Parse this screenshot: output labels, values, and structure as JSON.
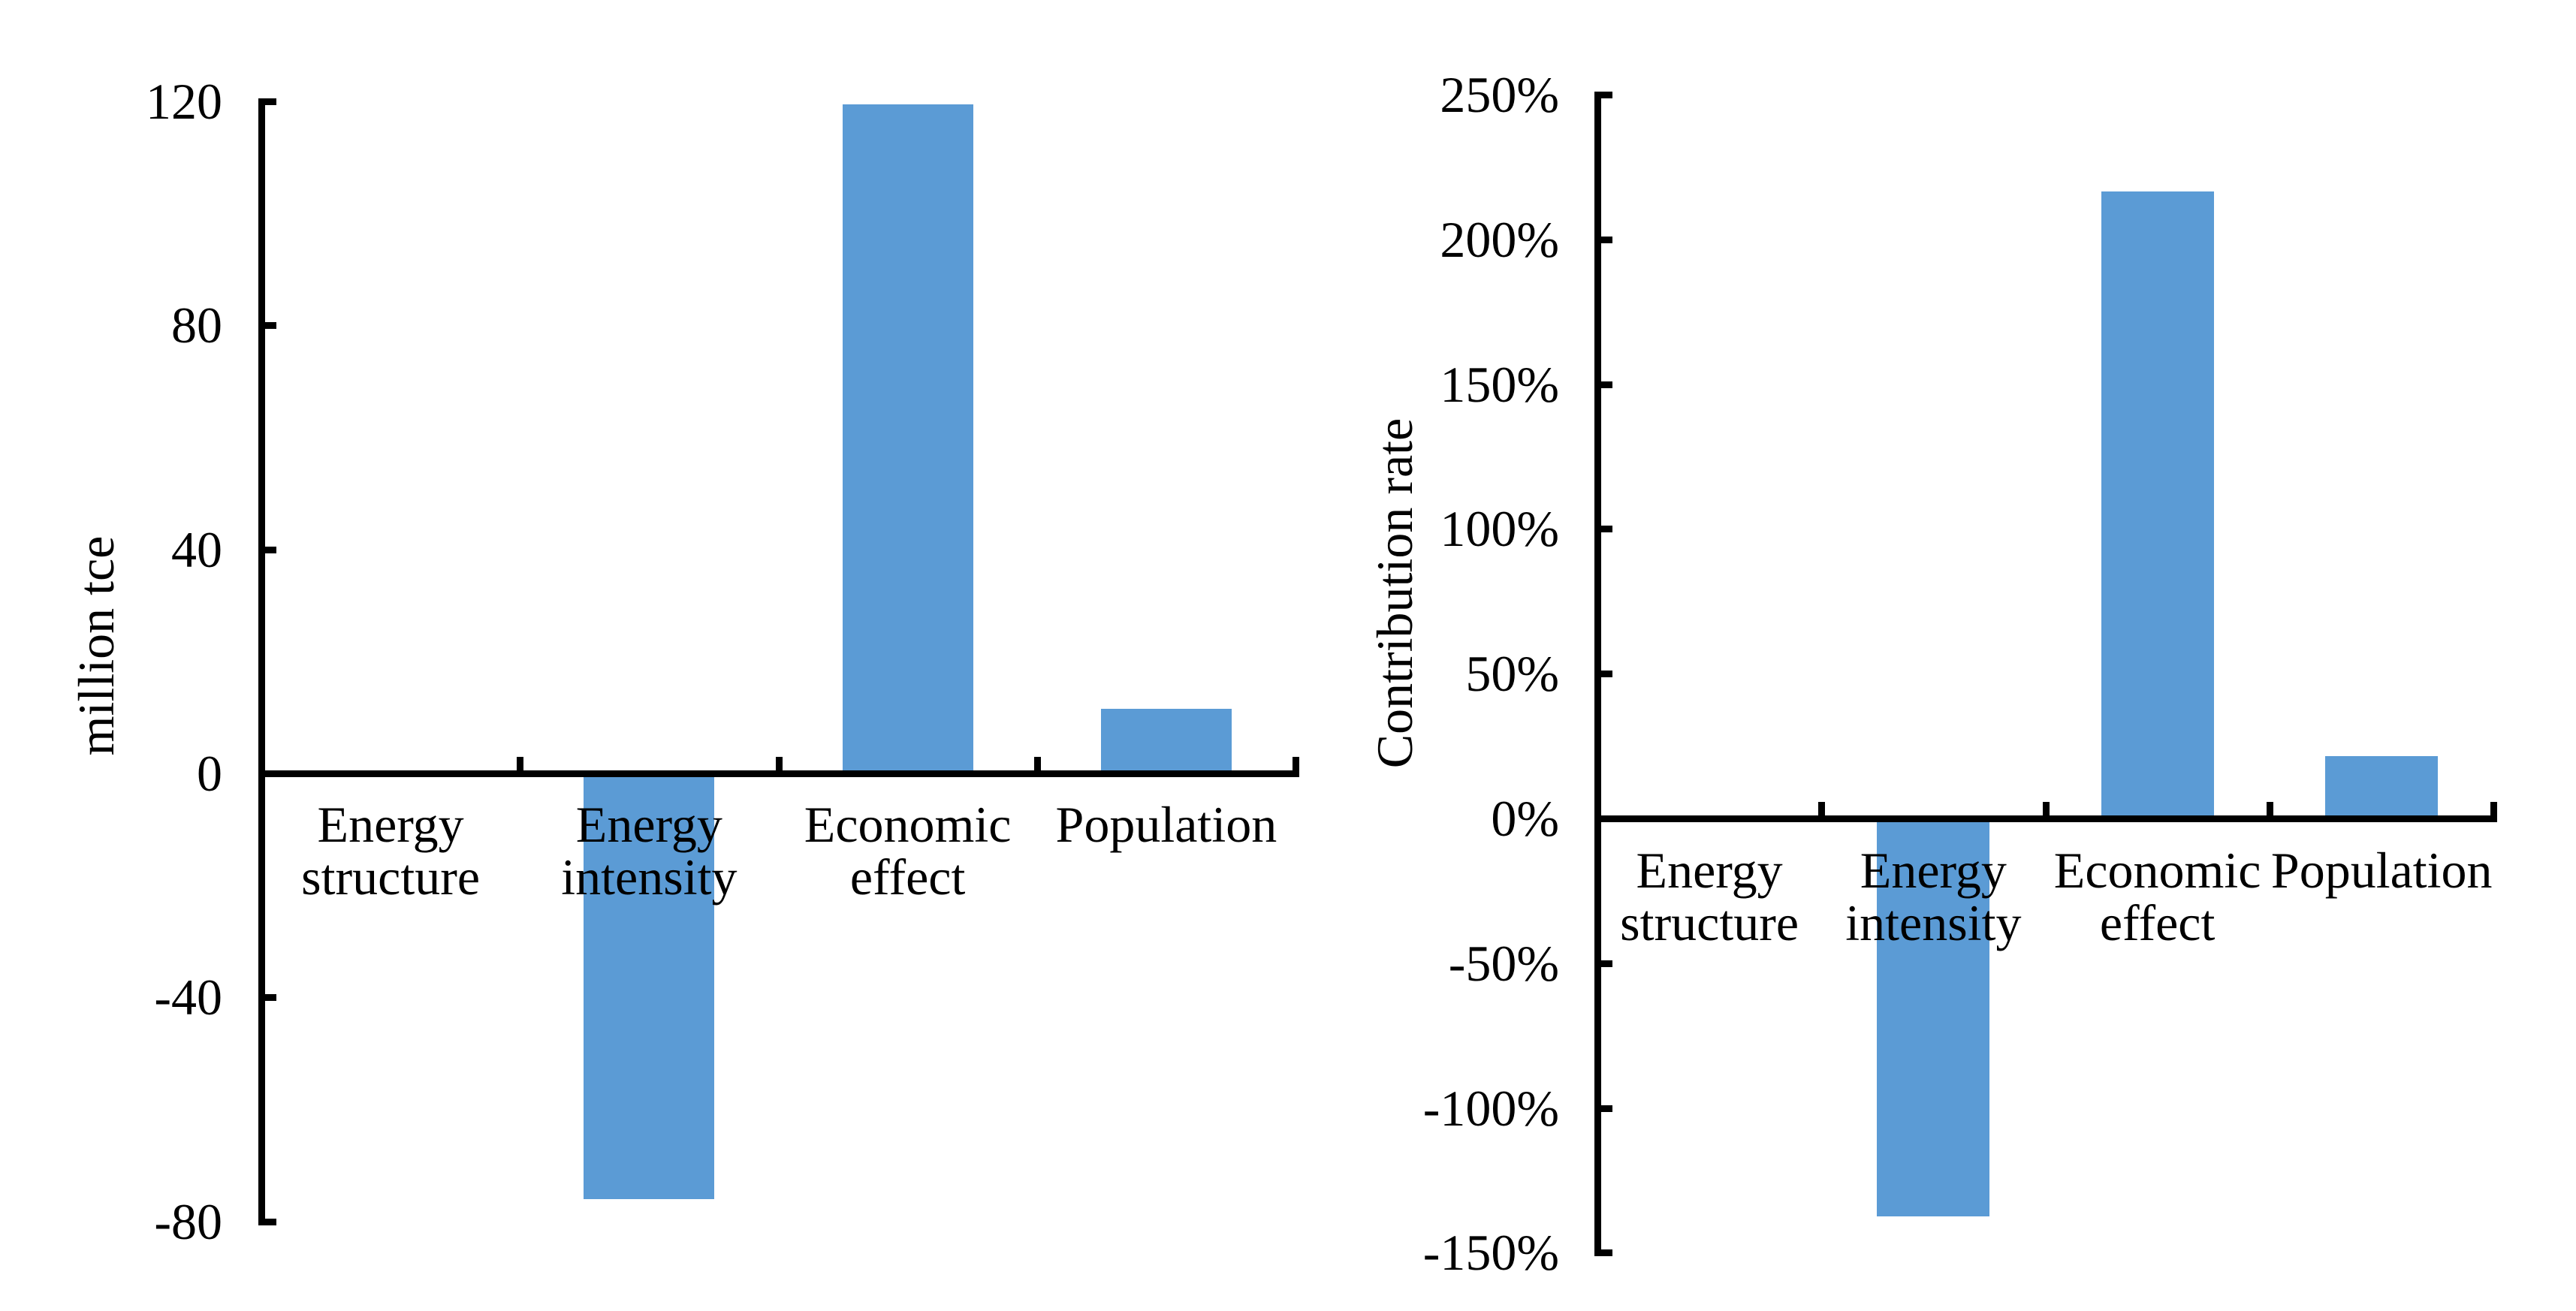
{
  "figure": {
    "background": "#ffffff",
    "axis_color": "#000000",
    "text_color": "#000000",
    "bar_color": "#5B9BD5"
  },
  "chart_data": [
    {
      "type": "bar",
      "title": "",
      "ylabel": "million tce",
      "xlabel": "",
      "categories": [
        "Energy structure",
        "Energy intensity",
        "Economic effect",
        "Population"
      ],
      "values": [
        0,
        -76,
        119.5,
        11.5
      ],
      "ylim": [
        -80,
        120
      ],
      "yticks": [
        120,
        80,
        40,
        0,
        -40,
        -80
      ],
      "ytick_labels": [
        "120",
        "80",
        "40",
        "0",
        "-40",
        "-80"
      ],
      "grid": false,
      "legend_position": "none",
      "bar_color": "#5B9BD5"
    },
    {
      "type": "bar",
      "title": "",
      "ylabel": "Contribution rate",
      "xlabel": "",
      "categories": [
        "Energy structure",
        "Energy intensity",
        "Economic effect",
        "Population"
      ],
      "values": [
        0,
        -137.5,
        216.5,
        21.5
      ],
      "unit": "%",
      "ylim": [
        -150,
        250
      ],
      "yticks": [
        250,
        200,
        150,
        100,
        50,
        0,
        -50,
        -100,
        -150
      ],
      "ytick_labels": [
        "250%",
        "200%",
        "150%",
        "100%",
        "50%",
        "0%",
        "-50%",
        "-100%",
        "-150%"
      ],
      "grid": false,
      "legend_position": "none",
      "bar_color": "#5B9BD5"
    }
  ]
}
